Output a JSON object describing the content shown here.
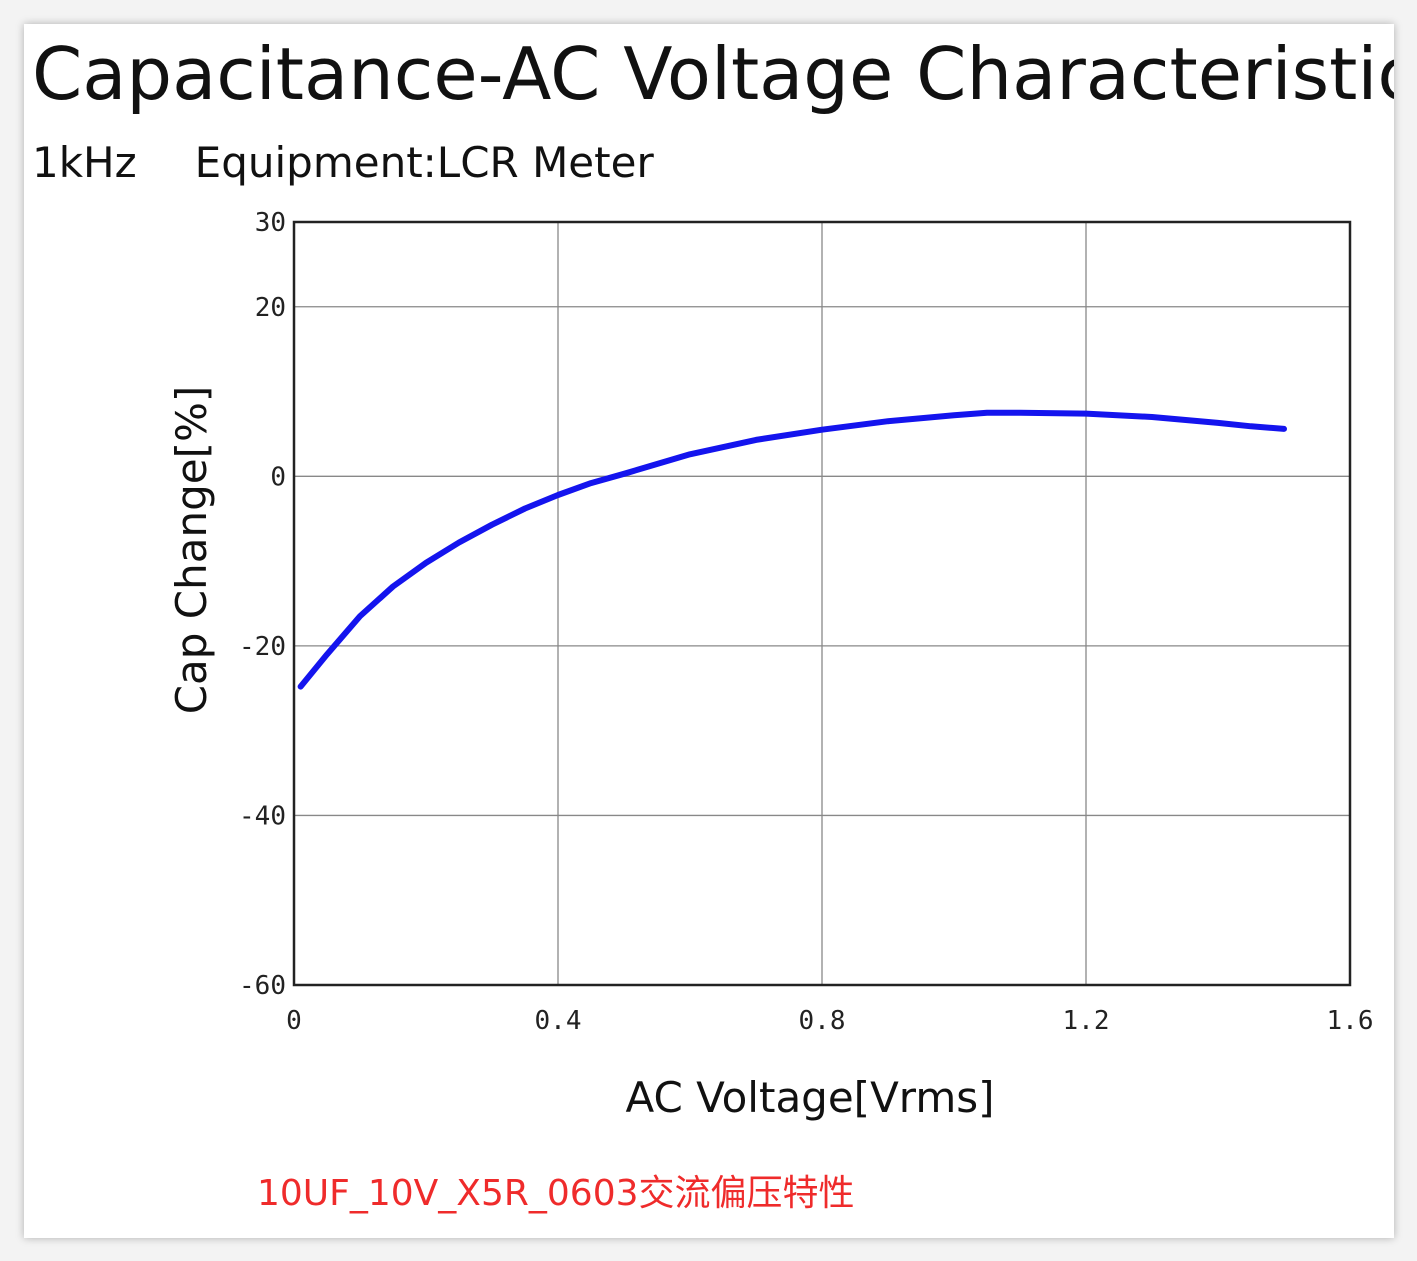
{
  "title": "Capacitance-AC Voltage Characteristic",
  "subtitle": {
    "frequency": "1kHz",
    "equipment": "Equipment:LCR Meter"
  },
  "caption": "10UF_10V_X5R_0603交流偏压特性",
  "colors": {
    "series": "#1414ee",
    "caption": "#ef2b2b",
    "grid": "#888888",
    "frame": "#222222"
  },
  "chart_data": {
    "type": "line",
    "xlabel": "AC Voltage[Vrms]",
    "ylabel": "Cap Change[%]",
    "xlim": [
      0,
      1.6
    ],
    "ylim": [
      -60,
      30
    ],
    "xticks": [
      0,
      0.4,
      0.8,
      1.2,
      1.6
    ],
    "xtick_labels": [
      "0",
      "0.4",
      "0.8",
      "1.2",
      "1.6"
    ],
    "yticks": [
      -60,
      -40,
      -20,
      0,
      20,
      30
    ],
    "ytick_labels": [
      "-60",
      "-40",
      "-20",
      "0",
      "20",
      "30"
    ],
    "grid": true,
    "series": [
      {
        "x": [
          0.01,
          0.05,
          0.1,
          0.15,
          0.2,
          0.25,
          0.3,
          0.35,
          0.4,
          0.45,
          0.5,
          0.6,
          0.7,
          0.8,
          0.9,
          1.0,
          1.05,
          1.1,
          1.2,
          1.3,
          1.4,
          1.45,
          1.5
        ],
        "y": [
          -24.8,
          -21.0,
          -16.5,
          -13.0,
          -10.2,
          -7.8,
          -5.7,
          -3.8,
          -2.2,
          -0.8,
          0.3,
          2.6,
          4.3,
          5.5,
          6.5,
          7.2,
          7.5,
          7.5,
          7.4,
          7.0,
          6.3,
          5.9,
          5.6
        ]
      }
    ]
  }
}
